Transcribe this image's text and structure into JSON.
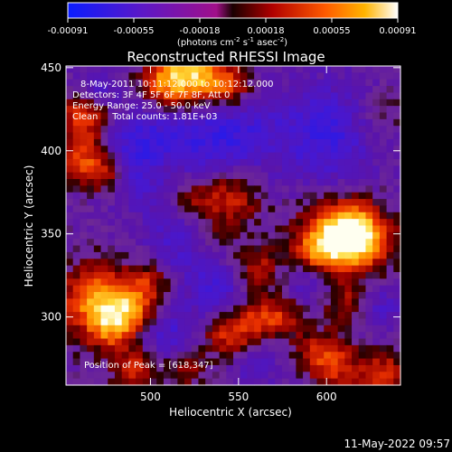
{
  "chart_data": {
    "type": "heatmap",
    "title": "Reconstructed RHESSI Image",
    "xlabel": "Heliocentric X (arcsec)",
    "ylabel": "Heliocentric Y (arcsec)",
    "xlim": [
      452,
      642
    ],
    "ylim": [
      259,
      451
    ],
    "xticks": [
      500,
      550,
      600
    ],
    "yticks": [
      300,
      350,
      400,
      450
    ],
    "colorbar": {
      "ticks": [
        "-0.00091",
        "-0.00055",
        "-0.00018",
        "0.00018",
        "0.00055",
        "0.00091"
      ],
      "units_html": "(photons cm<tspan baseline-shift=\"super\" font-size=\"7\">-2</tspan> s<tspan baseline-shift=\"super\" font-size=\"7\">-1</tspan> asec<tspan baseline-shift=\"super\" font-size=\"7\">-2</tspan>)",
      "range": [
        -0.00091,
        0.00091
      ]
    },
    "annotations": [
      "8-May-2011 10:11:12.000 to 10:12:12.000",
      "Detectors: 3F 4F 5F 6F 7F 8F, Att 0",
      "Energy Range: 25.0 - 50.0 keV",
      "Clean     Total counts: 1.81E+03"
    ],
    "peak_label": "Position of Peak = [618,347]",
    "peak": [
      618,
      347
    ],
    "sources": [
      [
        618,
        347,
        1.0,
        12
      ],
      [
        606,
        352,
        0.7,
        14
      ],
      [
        595,
        338,
        0.55,
        10
      ],
      [
        470,
        310,
        0.85,
        14
      ],
      [
        490,
        305,
        0.6,
        10
      ],
      [
        478,
        292,
        0.5,
        9
      ],
      [
        525,
        445,
        0.9,
        12
      ],
      [
        508,
        440,
        0.65,
        10
      ],
      [
        545,
        438,
        0.55,
        9
      ],
      [
        462,
        420,
        0.6,
        10
      ],
      [
        462,
        395,
        0.65,
        10
      ],
      [
        475,
        385,
        0.45,
        8
      ],
      [
        545,
        372,
        0.5,
        12
      ],
      [
        522,
        372,
        0.4,
        9
      ],
      [
        530,
        348,
        0.35,
        10
      ],
      [
        560,
        330,
        0.4,
        9
      ],
      [
        545,
        290,
        0.55,
        10
      ],
      [
        562,
        300,
        0.45,
        9
      ],
      [
        492,
        268,
        0.5,
        9
      ],
      [
        520,
        270,
        0.35,
        8
      ],
      [
        578,
        300,
        0.35,
        9
      ],
      [
        612,
        308,
        0.4,
        10
      ],
      [
        605,
        270,
        0.5,
        10
      ],
      [
        632,
        265,
        0.55,
        9
      ],
      [
        595,
        280,
        0.35,
        8
      ],
      [
        630,
        420,
        0.25,
        10
      ],
      [
        500,
        322,
        0.35,
        8
      ],
      [
        510,
        390,
        0.25,
        8
      ]
    ],
    "troughs": [
      [
        500,
        398,
        -0.55,
        22
      ],
      [
        545,
        410,
        -0.45,
        18
      ],
      [
        600,
        410,
        -0.5,
        22
      ],
      [
        520,
        345,
        -0.45,
        14
      ],
      [
        538,
        315,
        -0.4,
        12
      ],
      [
        510,
        290,
        -0.4,
        12
      ],
      [
        592,
        320,
        -0.35,
        10
      ],
      [
        630,
        305,
        -0.35,
        10
      ],
      [
        470,
        440,
        -0.3,
        8
      ],
      [
        560,
        270,
        -0.3,
        10
      ]
    ],
    "grid": false,
    "legend": "colorbar-top"
  },
  "footer": {
    "datetime": "11-May-2022 09:57"
  }
}
